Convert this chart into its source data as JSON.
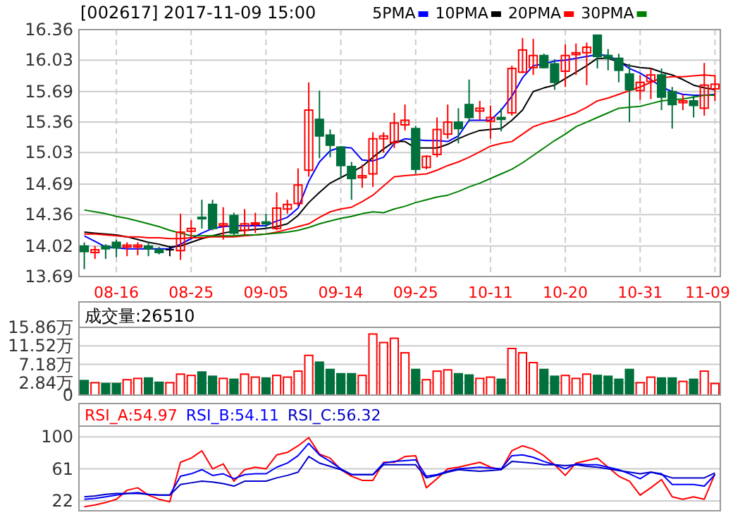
{
  "chart_data": [
    {
      "type": "candlestick",
      "title": "[002617] 2017-11-09 15:00",
      "categories": [
        null,
        null,
        null,
        "08-16",
        null,
        null,
        null,
        null,
        null,
        null,
        "08-25",
        null,
        null,
        null,
        null,
        null,
        null,
        "09-05",
        null,
        null,
        null,
        null,
        null,
        null,
        "09-14",
        null,
        null,
        null,
        null,
        null,
        null,
        "09-25",
        null,
        null,
        null,
        null,
        null,
        null,
        "10-11",
        null,
        null,
        null,
        null,
        null,
        null,
        "10-20",
        null,
        null,
        null,
        null,
        null,
        null,
        "10-31",
        null,
        null,
        null,
        null,
        null,
        null,
        "11-09"
      ],
      "ohlc": [
        [
          14.02,
          14.06,
          13.77,
          13.96
        ],
        [
          13.95,
          14.02,
          13.88,
          13.98
        ],
        [
          14.02,
          14.04,
          13.88,
          13.99
        ],
        [
          14.06,
          14.09,
          13.9,
          14.0
        ],
        [
          14.01,
          14.06,
          13.91,
          14.03
        ],
        [
          14.01,
          14.06,
          13.92,
          14.03
        ],
        [
          14.02,
          14.07,
          13.91,
          13.99
        ],
        [
          13.98,
          14.01,
          13.93,
          13.95
        ],
        [
          13.98,
          14.02,
          13.91,
          13.98
        ],
        [
          13.97,
          14.37,
          13.87,
          14.17
        ],
        [
          14.18,
          14.3,
          14.1,
          14.21
        ],
        [
          14.33,
          14.52,
          14.21,
          14.32
        ],
        [
          14.47,
          14.52,
          14.19,
          14.21
        ],
        [
          14.24,
          14.44,
          14.09,
          14.26
        ],
        [
          14.35,
          14.38,
          14.14,
          14.16
        ],
        [
          14.19,
          14.42,
          14.14,
          14.26
        ],
        [
          14.26,
          14.38,
          14.16,
          14.27
        ],
        [
          14.28,
          14.37,
          14.21,
          14.26
        ],
        [
          14.21,
          14.6,
          14.19,
          14.43
        ],
        [
          14.42,
          14.52,
          14.37,
          14.47
        ],
        [
          14.48,
          14.86,
          14.45,
          14.68
        ],
        [
          14.84,
          15.79,
          14.77,
          15.49
        ],
        [
          15.39,
          15.7,
          14.97,
          15.21
        ],
        [
          15.22,
          15.28,
          14.98,
          15.11
        ],
        [
          15.09,
          15.1,
          14.75,
          14.89
        ],
        [
          14.88,
          14.93,
          14.52,
          14.75
        ],
        [
          14.76,
          14.9,
          14.65,
          14.78
        ],
        [
          14.8,
          15.25,
          14.66,
          15.18
        ],
        [
          15.18,
          15.25,
          15.03,
          15.21
        ],
        [
          15.14,
          15.46,
          15.08,
          15.35
        ],
        [
          15.33,
          15.55,
          15.27,
          15.38
        ],
        [
          15.29,
          15.32,
          14.8,
          14.85
        ],
        [
          14.87,
          15.0,
          14.85,
          14.99
        ],
        [
          15.01,
          15.41,
          14.98,
          15.28
        ],
        [
          15.23,
          15.55,
          15.18,
          15.36
        ],
        [
          15.36,
          15.51,
          15.13,
          15.29
        ],
        [
          15.55,
          15.82,
          15.36,
          15.41
        ],
        [
          15.48,
          15.59,
          15.38,
          15.51
        ],
        [
          15.37,
          15.54,
          15.18,
          15.41
        ],
        [
          15.41,
          15.51,
          15.26,
          15.39
        ],
        [
          15.46,
          15.97,
          15.43,
          15.94
        ],
        [
          15.9,
          16.27,
          15.89,
          16.14
        ],
        [
          15.95,
          16.26,
          15.87,
          16.08
        ],
        [
          16.08,
          16.1,
          15.94,
          15.95
        ],
        [
          15.99,
          16.04,
          15.71,
          15.79
        ],
        [
          15.91,
          16.2,
          15.74,
          16.08
        ],
        [
          16.09,
          16.21,
          15.87,
          16.11
        ],
        [
          16.11,
          16.22,
          15.76,
          16.17
        ],
        [
          16.3,
          16.3,
          15.94,
          16.07
        ],
        [
          16.08,
          16.15,
          15.92,
          16.05
        ],
        [
          16.05,
          16.1,
          15.79,
          15.92
        ],
        [
          15.88,
          15.99,
          15.36,
          15.71
        ],
        [
          15.7,
          15.87,
          15.6,
          15.79
        ],
        [
          15.8,
          15.94,
          15.61,
          15.87
        ],
        [
          15.87,
          15.94,
          15.49,
          15.63
        ],
        [
          15.69,
          15.74,
          15.29,
          15.55
        ],
        [
          15.57,
          15.66,
          15.49,
          15.59
        ],
        [
          15.59,
          15.66,
          15.41,
          15.54
        ],
        [
          15.51,
          16.0,
          15.43,
          15.76
        ],
        [
          15.72,
          15.87,
          15.59,
          15.77
        ]
      ],
      "colors": [
        "#00703c",
        "#ff0000",
        "#00703c",
        "#00703c",
        "#ff0000",
        "#ff0000",
        "#00703c",
        "#00703c",
        "#000000",
        "#ff0000",
        "#ff0000",
        "#00703c",
        "#00703c",
        "#ff0000",
        "#00703c",
        "#ff0000",
        "#ff0000",
        "#00703c",
        "#ff0000",
        "#ff0000",
        "#ff0000",
        "#ff0000",
        "#00703c",
        "#00703c",
        "#00703c",
        "#00703c",
        "#ff0000",
        "#ff0000",
        "#ff0000",
        "#ff0000",
        "#ff0000",
        "#00703c",
        "#ff0000",
        "#ff0000",
        "#ff0000",
        "#00703c",
        "#00703c",
        "#ff0000",
        "#ff0000",
        "#00703c",
        "#ff0000",
        "#ff0000",
        "#ff0000",
        "#00703c",
        "#00703c",
        "#ff0000",
        "#ff0000",
        "#ff0000",
        "#00703c",
        "#00703c",
        "#00703c",
        "#00703c",
        "#ff0000",
        "#ff0000",
        "#00703c",
        "#00703c",
        "#ff0000",
        "#00703c",
        "#ff0000",
        "#ff0000"
      ],
      "series": [
        {
          "name": "5PMA",
          "type": "line",
          "color": "#0000ff",
          "values": [
            14.13,
            14.07,
            14.01,
            14.0,
            13.99,
            13.99,
            13.99,
            13.99,
            13.99,
            14.04,
            14.1,
            14.16,
            14.21,
            14.23,
            14.24,
            14.24,
            14.24,
            14.24,
            14.29,
            14.33,
            14.43,
            14.72,
            14.93,
            15.05,
            15.09,
            15.08,
            14.95,
            14.94,
            14.98,
            15.13,
            15.18,
            15.17,
            15.16,
            15.16,
            15.15,
            15.21,
            15.38,
            15.38,
            15.38,
            15.49,
            15.64,
            15.84,
            15.97,
            15.99,
            16.02,
            16.03,
            16.05,
            16.07,
            16.09,
            16.08,
            16.02,
            15.94,
            15.89,
            15.82,
            15.74,
            15.69,
            15.66,
            15.65,
            15.65,
            15.66
          ]
        },
        {
          "name": "10PMA",
          "type": "line",
          "color": "#000000",
          "values": [
            14.17,
            14.16,
            14.15,
            14.14,
            14.12,
            14.09,
            14.06,
            14.04,
            14.01,
            14.02,
            14.06,
            14.1,
            14.13,
            14.16,
            14.18,
            14.19,
            14.2,
            14.21,
            14.23,
            14.26,
            14.35,
            14.49,
            14.6,
            14.7,
            14.76,
            14.82,
            14.88,
            14.98,
            15.07,
            15.15,
            15.15,
            15.08,
            15.08,
            15.08,
            15.12,
            15.18,
            15.23,
            15.27,
            15.28,
            15.29,
            15.38,
            15.49,
            15.69,
            15.73,
            15.76,
            15.83,
            15.9,
            15.97,
            16.05,
            16.05,
            16.01,
            15.97,
            15.95,
            15.94,
            15.9,
            15.87,
            15.82,
            15.76,
            15.73,
            15.71
          ]
        },
        {
          "name": "20PMA",
          "type": "line",
          "color": "#ff0000",
          "values": [
            14.15,
            14.15,
            14.14,
            14.13,
            14.12,
            14.12,
            14.11,
            14.11,
            14.1,
            14.1,
            14.11,
            14.11,
            14.12,
            14.12,
            14.12,
            14.13,
            14.14,
            14.15,
            14.17,
            14.2,
            14.23,
            14.26,
            14.33,
            14.39,
            14.42,
            14.44,
            14.5,
            14.57,
            14.67,
            14.77,
            14.78,
            14.79,
            14.8,
            14.84,
            14.89,
            14.93,
            14.98,
            15.04,
            15.1,
            15.13,
            15.15,
            15.23,
            15.31,
            15.35,
            15.38,
            15.42,
            15.46,
            15.52,
            15.59,
            15.62,
            15.66,
            15.7,
            15.74,
            15.79,
            15.84,
            15.85,
            15.85,
            15.86,
            15.87,
            15.86
          ]
        },
        {
          "name": "30PMA",
          "type": "line",
          "color": "#008000",
          "values": [
            14.41,
            14.39,
            14.37,
            14.34,
            14.32,
            14.29,
            14.26,
            14.23,
            14.19,
            14.16,
            14.13,
            14.13,
            14.13,
            14.13,
            14.13,
            14.14,
            14.14,
            14.15,
            14.16,
            14.17,
            14.19,
            14.22,
            14.26,
            14.29,
            14.32,
            14.34,
            14.37,
            14.39,
            14.38,
            14.42,
            14.45,
            14.49,
            14.52,
            14.55,
            14.57,
            14.61,
            14.66,
            14.7,
            14.75,
            14.8,
            14.85,
            14.92,
            15.0,
            15.08,
            15.16,
            15.23,
            15.31,
            15.36,
            15.41,
            15.46,
            15.51,
            15.52,
            15.53,
            15.56,
            15.59,
            15.6,
            15.61,
            15.63,
            15.65,
            15.65
          ]
        }
      ],
      "ylim": [
        13.69,
        16.36
      ],
      "yticks": [
        13.69,
        14.02,
        14.36,
        14.69,
        15.03,
        15.36,
        15.69,
        16.03,
        16.36
      ],
      "grid": true,
      "legend": "top"
    },
    {
      "type": "bar",
      "title": "成交量:26510",
      "categories": [
        null,
        null,
        null,
        null,
        null,
        null,
        null,
        null,
        null,
        null,
        null,
        null,
        null,
        null,
        null,
        null,
        null,
        null,
        null,
        null,
        null,
        null,
        null,
        null,
        null,
        null,
        null,
        null,
        null,
        null,
        null,
        null,
        null,
        null,
        null,
        null,
        null,
        null,
        null,
        null,
        null,
        null,
        null,
        null,
        null,
        null,
        null,
        null,
        null,
        null,
        null,
        null,
        null,
        null,
        null,
        null,
        null,
        null,
        null,
        null
      ],
      "values": [
        3.4,
        2.9,
        2.7,
        2.7,
        3.6,
        3.9,
        4.0,
        3.0,
        2.9,
        4.9,
        4.6,
        5.4,
        4.4,
        3.9,
        3.7,
        4.9,
        4.2,
        4.0,
        4.6,
        4.2,
        5.6,
        9.3,
        7.7,
        6.0,
        5.0,
        5.0,
        4.6,
        14.3,
        12.3,
        13.3,
        9.9,
        6.0,
        3.6,
        5.6,
        5.9,
        5.0,
        4.7,
        3.9,
        4.2,
        3.7,
        10.9,
        9.9,
        7.6,
        6.0,
        4.4,
        4.6,
        3.9,
        4.9,
        4.6,
        4.4,
        3.7,
        6.0,
        2.9,
        4.2,
        4.0,
        4.0,
        3.2,
        3.7,
        5.6,
        2.7
      ],
      "colors": [
        "#00703c",
        "#ff0000",
        "#00703c",
        "#00703c",
        "#ff0000",
        "#ff0000",
        "#00703c",
        "#00703c",
        "#ff0000",
        "#ff0000",
        "#ff0000",
        "#00703c",
        "#00703c",
        "#ff0000",
        "#00703c",
        "#ff0000",
        "#ff0000",
        "#00703c",
        "#ff0000",
        "#ff0000",
        "#ff0000",
        "#ff0000",
        "#00703c",
        "#00703c",
        "#00703c",
        "#00703c",
        "#ff0000",
        "#ff0000",
        "#ff0000",
        "#ff0000",
        "#ff0000",
        "#00703c",
        "#ff0000",
        "#ff0000",
        "#ff0000",
        "#00703c",
        "#00703c",
        "#ff0000",
        "#ff0000",
        "#00703c",
        "#ff0000",
        "#ff0000",
        "#ff0000",
        "#00703c",
        "#00703c",
        "#ff0000",
        "#ff0000",
        "#ff0000",
        "#00703c",
        "#00703c",
        "#00703c",
        "#00703c",
        "#ff0000",
        "#ff0000",
        "#00703c",
        "#00703c",
        "#ff0000",
        "#00703c",
        "#ff0000",
        "#ff0000"
      ],
      "ylim": [
        0,
        15.86
      ],
      "yticks": [
        0,
        {
          "value": 2.84,
          "label": "2.84万"
        },
        {
          "value": 7.18,
          "label": "7.18万"
        },
        {
          "value": 11.52,
          "label": "11.52万"
        },
        {
          "value": 15.86,
          "label": "15.86万"
        }
      ],
      "grid": "y",
      "tick_labels": "y"
    },
    {
      "type": "line",
      "categories": [
        null,
        null,
        null,
        null,
        null,
        null,
        null,
        null,
        null,
        null,
        null,
        null,
        null,
        null,
        null,
        null,
        null,
        null,
        null,
        null,
        null,
        null,
        null,
        null,
        null,
        null,
        null,
        null,
        null,
        null,
        null,
        null,
        null,
        null,
        null,
        null,
        null,
        null,
        null,
        null,
        null,
        null,
        null,
        null,
        null,
        null,
        null,
        null,
        null,
        null,
        null,
        null,
        null,
        null,
        null,
        null,
        null,
        null,
        null,
        null
      ],
      "series": [
        {
          "name": "RSI_A:54.97",
          "color": "#ff0000",
          "values": [
            15,
            17,
            20,
            24,
            35,
            38,
            29,
            24,
            21,
            69,
            74,
            83,
            61,
            67,
            46,
            60,
            63,
            61,
            78,
            81,
            89,
            99,
            79,
            74,
            60,
            52,
            47,
            47,
            69,
            69,
            76,
            77,
            38,
            49,
            61,
            63,
            66,
            69,
            63,
            60,
            83,
            89,
            85,
            77,
            66,
            53,
            68,
            71,
            74,
            63,
            52,
            46,
            29,
            38,
            48,
            27,
            24,
            27,
            24,
            55
          ]
        },
        {
          "name": "RSI_B:54.11",
          "color": "#0000ff",
          "values": [
            24,
            25,
            27,
            29,
            31,
            32,
            30,
            29,
            29,
            52,
            55,
            60,
            53,
            55,
            49,
            54,
            55,
            55,
            63,
            68,
            77,
            92,
            78,
            70,
            61,
            54,
            54,
            54,
            68,
            70,
            71,
            72,
            52,
            54,
            58,
            61,
            62,
            63,
            62,
            61,
            77,
            78,
            75,
            70,
            66,
            61,
            67,
            66,
            66,
            63,
            60,
            55,
            49,
            57,
            55,
            42,
            42,
            42,
            40,
            54
          ]
        },
        {
          "name": "RSI_C:56.32",
          "color": "#0000c8",
          "values": [
            27,
            28,
            30,
            31,
            31,
            31,
            30,
            29,
            29,
            42,
            44,
            46,
            45,
            43,
            40,
            46,
            46,
            46,
            50,
            53,
            57,
            76,
            68,
            64,
            60,
            54,
            54,
            54,
            66,
            66,
            66,
            66,
            50,
            53,
            57,
            60,
            59,
            58,
            59,
            60,
            70,
            69,
            68,
            66,
            66,
            65,
            66,
            64,
            63,
            61,
            59,
            57,
            55,
            57,
            54,
            50,
            50,
            50,
            50,
            56
          ]
        }
      ],
      "ylim": [
        10,
        113
      ],
      "yticks": [
        22,
        61,
        100
      ],
      "grid": "y",
      "tick_labels": "y",
      "legend": "top"
    }
  ]
}
